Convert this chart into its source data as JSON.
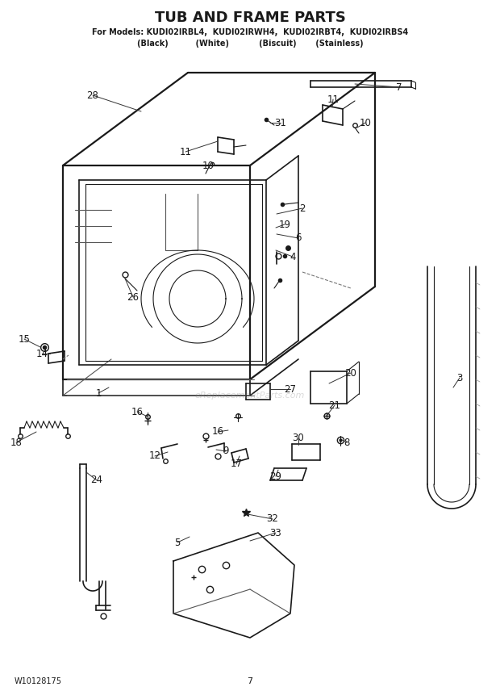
{
  "title": "TUB AND FRAME PARTS",
  "subtitle_line1": "For Models: KUDI02IRBL4,  KUDI02IRWH4,  KUDI02IRBT4,  KUDI02IRBS4",
  "subtitle_line2": "(Black)          (White)           (Biscuit)       (Stainless)",
  "footer_left": "W10128175",
  "footer_center": "7",
  "bg_color": "#ffffff",
  "line_color": "#1a1a1a",
  "watermark": "eReplacementParts.com"
}
